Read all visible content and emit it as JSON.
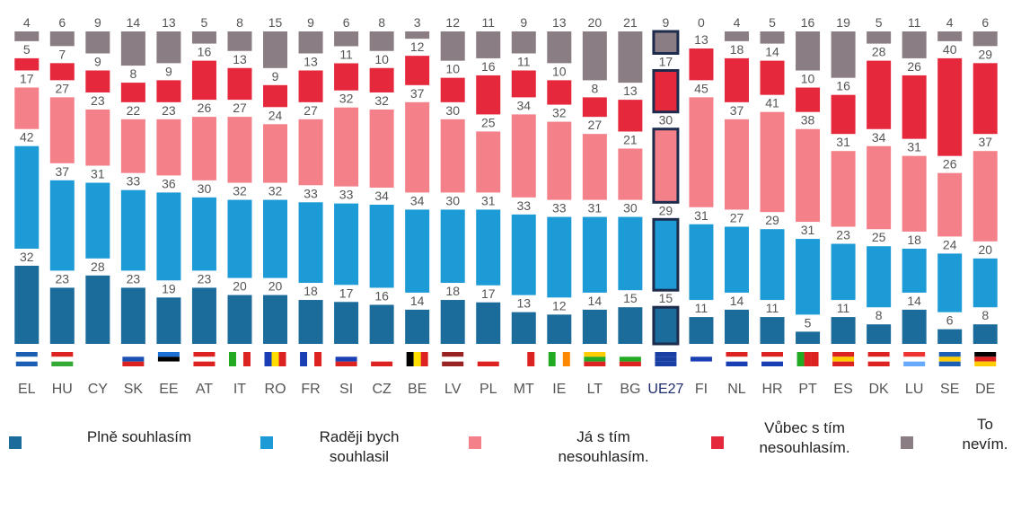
{
  "chart_data": {
    "type": "bar",
    "stacked": true,
    "categories": [
      "EL",
      "HU",
      "CY",
      "SK",
      "EE",
      "AT",
      "IT",
      "RO",
      "FR",
      "SI",
      "CZ",
      "BE",
      "LV",
      "PL",
      "MT",
      "IE",
      "LT",
      "BG",
      "UE27",
      "FI",
      "NL",
      "HR",
      "PT",
      "ES",
      "DK",
      "LU",
      "SE",
      "DE"
    ],
    "highlight": "UE27",
    "series": [
      {
        "name": "Plně souhlasím",
        "color": "#1b6b9b",
        "values": [
          32,
          23,
          28,
          23,
          19,
          23,
          20,
          20,
          18,
          17,
          16,
          14,
          18,
          17,
          13,
          12,
          14,
          15,
          15,
          11,
          14,
          11,
          5,
          11,
          8,
          14,
          6,
          8
        ]
      },
      {
        "name": "Raději bych souhlasil",
        "color": "#1d9bd7",
        "values": [
          42,
          37,
          31,
          33,
          36,
          30,
          32,
          32,
          33,
          33,
          34,
          34,
          30,
          31,
          33,
          33,
          31,
          30,
          29,
          31,
          27,
          29,
          31,
          23,
          25,
          18,
          24,
          20
        ]
      },
      {
        "name": "Já s tím nesouhlasím.",
        "color": "#f4808a",
        "values": [
          17,
          27,
          23,
          22,
          23,
          26,
          27,
          24,
          27,
          32,
          32,
          37,
          30,
          25,
          34,
          32,
          27,
          21,
          30,
          45,
          37,
          41,
          38,
          31,
          34,
          31,
          26,
          37
        ]
      },
      {
        "name": "Vůbec s tím nesouhlasím.",
        "color": "#e6283d",
        "values": [
          5,
          7,
          9,
          8,
          9,
          16,
          13,
          9,
          13,
          11,
          10,
          12,
          10,
          16,
          11,
          10,
          8,
          13,
          17,
          13,
          18,
          14,
          10,
          16,
          28,
          26,
          40,
          29
        ]
      },
      {
        "name": "To nevím.",
        "color": "#8a7d84",
        "values": [
          4,
          6,
          9,
          14,
          13,
          5,
          8,
          15,
          9,
          6,
          8,
          3,
          12,
          11,
          9,
          13,
          20,
          21,
          9,
          0,
          4,
          5,
          16,
          19,
          5,
          11,
          4,
          6
        ]
      }
    ]
  }
}
